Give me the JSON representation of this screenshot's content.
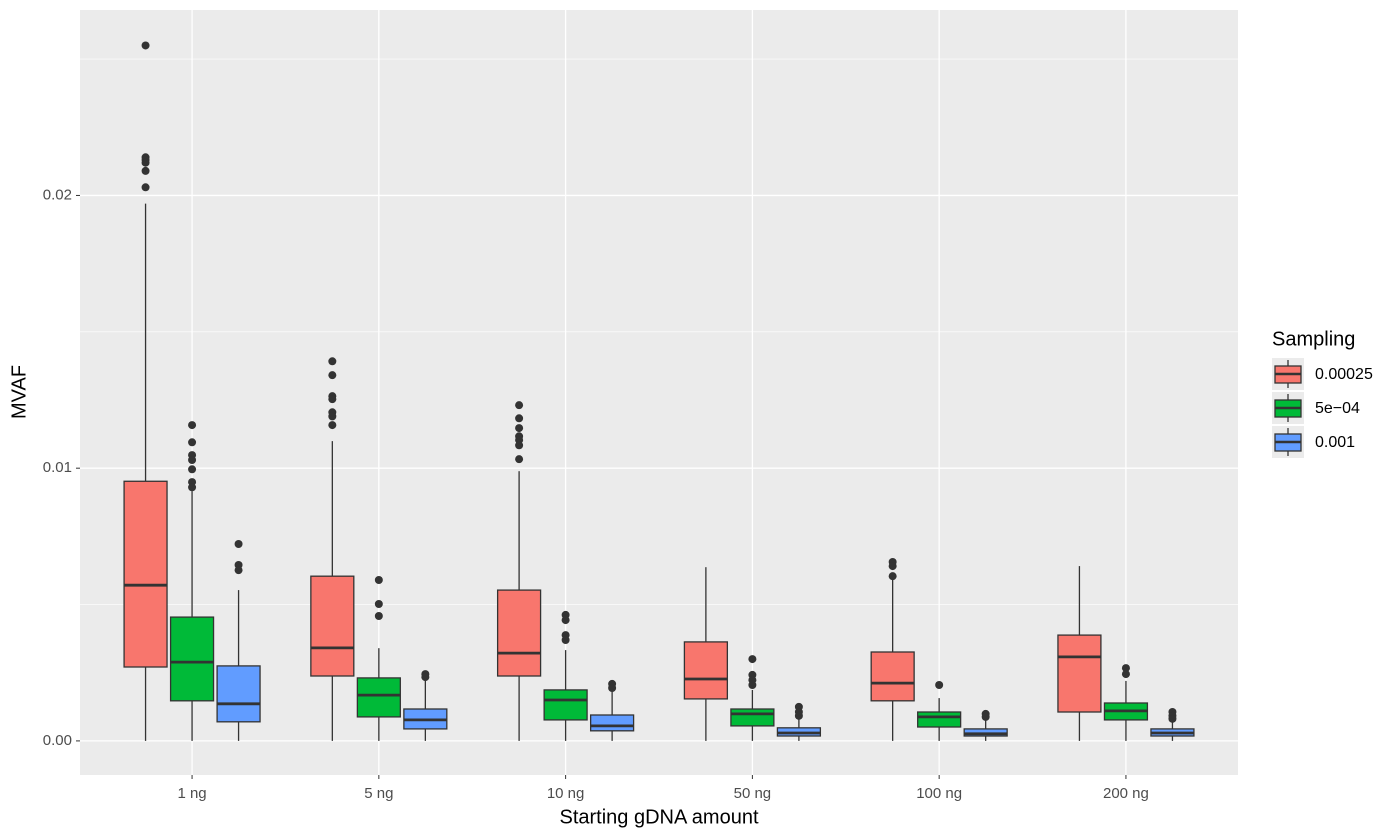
{
  "chart_data": {
    "type": "boxplot",
    "x_label": "Starting gDNA amount",
    "y_label": "MVAF",
    "categories": [
      "1 ng",
      "5 ng",
      "10 ng",
      "50 ng",
      "100 ng",
      "200 ng"
    ],
    "ylim": [
      -0.00125,
      0.0268
    ],
    "yticks": [
      {
        "value": 0,
        "label": "0.00"
      },
      {
        "value": 0.01,
        "label": "0.01"
      },
      {
        "value": 0.02,
        "label": "0.02"
      }
    ],
    "grid": true,
    "legend_title": "Sampling",
    "legend_position": "right",
    "series": [
      {
        "name": "0.00025",
        "color": "#F8766D",
        "boxes": [
          {
            "low": 0,
            "q1": 0.00271,
            "median": 0.00571,
            "q3": 0.00952,
            "high": 0.0197,
            "outliers": [
              0.0255,
              0.0214,
              0.0213,
              0.0212,
              0.0209,
              0.0203
            ]
          },
          {
            "low": 0,
            "q1": 0.00238,
            "median": 0.00341,
            "q3": 0.00604,
            "high": 0.01099,
            "outliers": [
              0.01392,
              0.01341,
              0.01264,
              0.01253,
              0.01205,
              0.0119,
              0.01158
            ]
          },
          {
            "low": 0,
            "q1": 0.00238,
            "median": 0.00322,
            "q3": 0.00553,
            "high": 0.00989,
            "outliers": [
              0.01231,
              0.01183,
              0.01147,
              0.01117,
              0.01103,
              0.01084,
              0.01033
            ]
          },
          {
            "low": 0,
            "q1": 0.00154,
            "median": 0.00227,
            "q3": 0.00363,
            "high": 0.00637,
            "outliers": []
          },
          {
            "low": 0,
            "q1": 0.00147,
            "median": 0.00212,
            "q3": 0.00326,
            "high": 0.0059,
            "outliers": [
              0.00656,
              0.00641,
              0.00604
            ]
          },
          {
            "low": 0,
            "q1": 0.00106,
            "median": 0.00308,
            "q3": 0.00388,
            "high": 0.00641,
            "outliers": []
          }
        ]
      },
      {
        "name": "5e−04",
        "color": "#00BA38",
        "boxes": [
          {
            "low": 0,
            "q1": 0.00147,
            "median": 0.00289,
            "q3": 0.00454,
            "high": 0.00916,
            "outliers": [
              0.01158,
              0.01095,
              0.01048,
              0.0103,
              0.00996,
              0.00949,
              0.0093
            ]
          },
          {
            "low": 0,
            "q1": 0.00088,
            "median": 0.00168,
            "q3": 0.00231,
            "high": 0.0034,
            "outliers": [
              0.0059,
              0.00502,
              0.00458
            ]
          },
          {
            "low": 0,
            "q1": 0.00077,
            "median": 0.0015,
            "q3": 0.00187,
            "high": 0.00333,
            "outliers": [
              0.00462,
              0.00443,
              0.00388,
              0.0037
            ]
          },
          {
            "low": 0,
            "q1": 0.00055,
            "median": 0.00099,
            "q3": 0.00117,
            "high": 0.00187,
            "outliers": [
              0.003,
              0.00242,
              0.00223,
              0.00205
            ]
          },
          {
            "low": 0,
            "q1": 0.00051,
            "median": 0.00088,
            "q3": 0.00106,
            "high": 0.00157,
            "outliers": [
              0.00205
            ]
          },
          {
            "low": 0,
            "q1": 0.00077,
            "median": 0.0011,
            "q3": 0.00139,
            "high": 0.0022,
            "outliers": [
              0.00267,
              0.00245
            ]
          }
        ]
      },
      {
        "name": "0.001",
        "color": "#619CFF",
        "boxes": [
          {
            "low": 0,
            "q1": 0.0007,
            "median": 0.00136,
            "q3": 0.00275,
            "high": 0.00553,
            "outliers": [
              0.00722,
              0.00645,
              0.00626
            ]
          },
          {
            "low": 0,
            "q1": 0.00044,
            "median": 0.00077,
            "q3": 0.00117,
            "high": 0.00223,
            "outliers": [
              0.00245,
              0.00234
            ]
          },
          {
            "low": 0,
            "q1": 0.00037,
            "median": 0.00055,
            "q3": 0.00095,
            "high": 0.00187,
            "outliers": [
              0.00209,
              0.00194
            ]
          },
          {
            "low": 0,
            "q1": 0.00018,
            "median": 0.00029,
            "q3": 0.00048,
            "high": 0.00084,
            "outliers": [
              0.00125,
              0.00106,
              0.00092
            ]
          },
          {
            "low": 0,
            "q1": 0.00018,
            "median": 0.00026,
            "q3": 0.00044,
            "high": 0.00077,
            "outliers": [
              0.00099,
              0.00088
            ]
          },
          {
            "low": 0,
            "q1": 0.00018,
            "median": 0.00029,
            "q3": 0.00044,
            "high": 0.0007,
            "outliers": [
              0.00106,
              0.00092,
              0.00081
            ]
          }
        ]
      }
    ]
  }
}
